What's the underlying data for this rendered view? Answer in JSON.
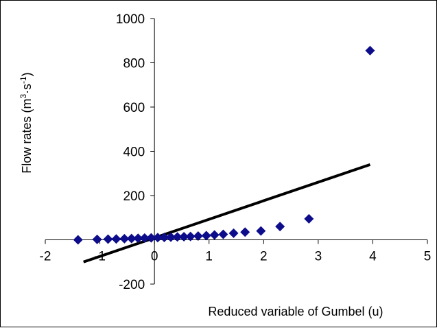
{
  "chart_data": {
    "type": "scatter",
    "xlabel": "Reduced variable of Gumbel  (u)",
    "ylabel": {
      "prefix": "Flow rates (m",
      "sup1": "3",
      "mid": "·s",
      "sup2": "-1",
      "suffix": ")"
    },
    "xlim": [
      -2,
      5
    ],
    "ylim": [
      -200,
      1000
    ],
    "x_ticks": [
      -2,
      -1,
      0,
      1,
      2,
      3,
      4,
      5
    ],
    "y_ticks": [
      -200,
      200,
      400,
      600,
      800,
      1000
    ],
    "y_tick_labels": [
      "-200",
      "200",
      "400",
      "600",
      "800",
      "1000"
    ],
    "grid": false,
    "series": [
      {
        "marker": "diamond",
        "color": "#0d0d8c",
        "points": [
          {
            "x": -1.4,
            "y": 0
          },
          {
            "x": -1.05,
            "y": 2
          },
          {
            "x": -0.85,
            "y": 3
          },
          {
            "x": -0.7,
            "y": 4
          },
          {
            "x": -0.55,
            "y": 5
          },
          {
            "x": -0.42,
            "y": 6
          },
          {
            "x": -0.3,
            "y": 7
          },
          {
            "x": -0.18,
            "y": 8
          },
          {
            "x": -0.06,
            "y": 9
          },
          {
            "x": 0.06,
            "y": 10
          },
          {
            "x": 0.18,
            "y": 11
          },
          {
            "x": 0.3,
            "y": 12
          },
          {
            "x": 0.42,
            "y": 13
          },
          {
            "x": 0.54,
            "y": 14
          },
          {
            "x": 0.66,
            "y": 15
          },
          {
            "x": 0.8,
            "y": 17
          },
          {
            "x": 0.95,
            "y": 19
          },
          {
            "x": 1.1,
            "y": 22
          },
          {
            "x": 1.26,
            "y": 25
          },
          {
            "x": 1.45,
            "y": 30
          },
          {
            "x": 1.66,
            "y": 35
          },
          {
            "x": 1.95,
            "y": 40
          },
          {
            "x": 2.3,
            "y": 60
          },
          {
            "x": 2.83,
            "y": 95
          },
          {
            "x": 3.95,
            "y": 855
          }
        ]
      },
      {
        "type": "line",
        "color": "#000000",
        "x": [
          -1.3,
          3.95
        ],
        "y": [
          -100,
          340
        ]
      }
    ]
  }
}
